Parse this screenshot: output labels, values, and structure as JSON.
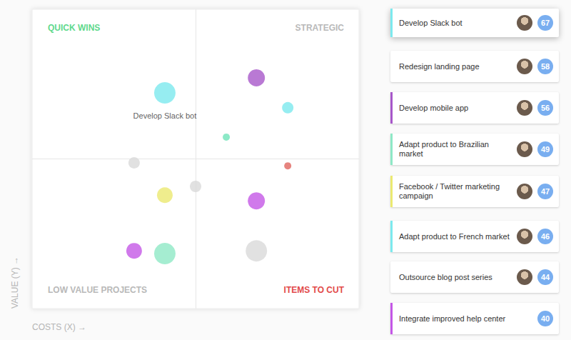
{
  "chart_data": {
    "type": "scatter",
    "x_label": "COSTS (X) →",
    "y_label": "VALUE (Y) →",
    "x": [
      40.6,
      68.6,
      78.2,
      59.4,
      31.2,
      78.2,
      50.0,
      40.6,
      68.6,
      31.2,
      40.6,
      68.6
    ],
    "values": [
      72.1,
      77.1,
      67.1,
      57.3,
      48.7,
      47.7,
      40.8,
      37.9,
      36.0,
      19.3,
      18.4,
      19.3
    ],
    "sizes": [
      30,
      24,
      16,
      10,
      16,
      10,
      16,
      22,
      24,
      22,
      30,
      30
    ],
    "colors": [
      "#7ce9ee",
      "#a757c9",
      "#7ce9ee",
      "#6fe3b9",
      "#dadada",
      "#e0655f",
      "#dadada",
      "#ebe970",
      "#c457e6",
      "#c457e6",
      "#8ee8c6",
      "#dadada"
    ],
    "point_labels": [
      "Develop Slack bot",
      null,
      null,
      null,
      null,
      null,
      null,
      null,
      null,
      null,
      null,
      null
    ],
    "xlim": [
      0,
      100
    ],
    "ylim": [
      0,
      100
    ],
    "xticks": [
      50
    ],
    "yticks": [
      50
    ],
    "grid": true,
    "tick_labels": false,
    "annotations": [
      {
        "text": "QUICK WINS",
        "color": "#5fd98c"
      },
      {
        "text": "STRATEGIC",
        "color": "#b9b9b9"
      },
      {
        "text": "LOW VALUE PROJECTS",
        "color": "#b9b9b9"
      },
      {
        "text": "ITEMS TO CUT",
        "color": "#e24a4a"
      }
    ]
  },
  "cards": [
    {
      "title": "Develop Slack bot",
      "score": 67,
      "color": "#7ce9ee",
      "avatar": true
    },
    {
      "title": "Redesign landing page",
      "score": 58,
      "color": null,
      "avatar": true
    },
    {
      "title": "Develop mobile app",
      "score": 56,
      "color": "#a757c9",
      "avatar": true
    },
    {
      "title": "Adapt product to Brazilian market",
      "score": 49,
      "color": "#8ee8c6",
      "avatar": true
    },
    {
      "title": "Facebook / Twitter marketing campaign",
      "score": 47,
      "color": "#ebe970",
      "avatar": true
    },
    {
      "title": "Adapt product to French market",
      "score": 46,
      "color": "#7ce9ee",
      "avatar": true
    },
    {
      "title": "Outsource blog post series",
      "score": 44,
      "color": null,
      "avatar": true
    },
    {
      "title": "Integrate improved help center",
      "score": 40,
      "color": "#c457e6",
      "avatar": false
    }
  ]
}
